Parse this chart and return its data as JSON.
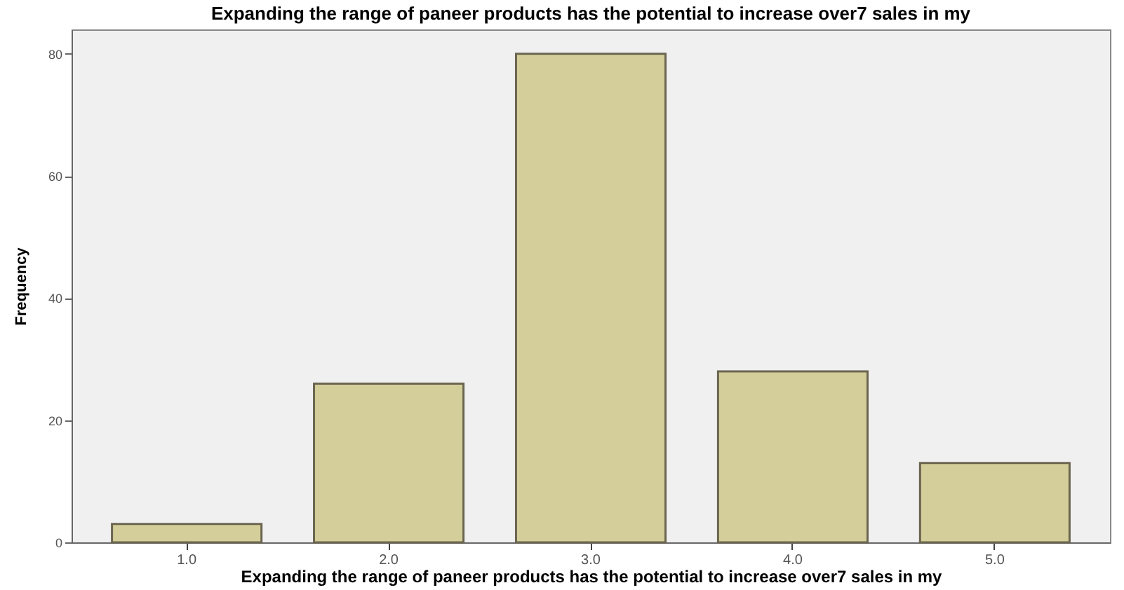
{
  "chart_data": {
    "type": "bar",
    "title": "Expanding the range of paneer products has the potential to increase over7\nsales in my",
    "xlabel": "Expanding the range of paneer products has the potential to increase over7\nsales in my",
    "ylabel": "Frequency",
    "categories": [
      "1.0",
      "2.0",
      "3.0",
      "4.0",
      "5.0"
    ],
    "values": [
      3,
      26,
      80,
      28,
      13
    ],
    "color": "#d4cf9a",
    "ylim": [
      0,
      84
    ],
    "yticks": [
      0,
      20,
      40,
      60,
      80
    ],
    "grid": false
  }
}
